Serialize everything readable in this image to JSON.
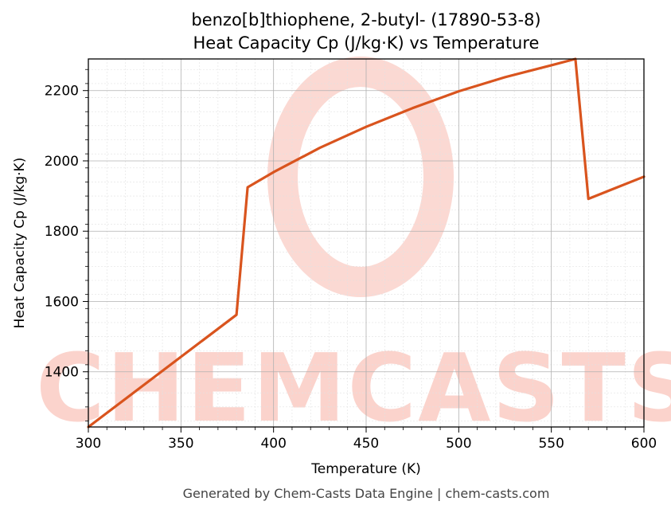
{
  "chart_data": {
    "type": "line",
    "title_line1": "benzo[b]thiophene, 2-butyl- (17890-53-8)",
    "title_line2": "Heat Capacity Cp (J/kg·K) vs Temperature",
    "xlabel": "Temperature (K)",
    "ylabel": "Heat Capacity Cp (J/kg·K)",
    "xlim": [
      300,
      600
    ],
    "ylim": [
      1243,
      2290
    ],
    "xticks": [
      300,
      350,
      400,
      450,
      500,
      550,
      600
    ],
    "yticks": [
      1400,
      1600,
      1800,
      2000,
      2200
    ],
    "grid": true,
    "series": [
      {
        "color": "#d9541e",
        "x": [
          300,
          380,
          386,
          400,
          425,
          450,
          475,
          500,
          525,
          550,
          563,
          570,
          600
        ],
        "y": [
          1243,
          1562,
          1925,
          1968,
          2037,
          2097,
          2150,
          2198,
          2238,
          2272,
          2290,
          1892,
          1955
        ]
      }
    ]
  },
  "watermark": "CHEMCASTS",
  "footer": "Generated by Chem-Casts Data Engine | chem-casts.com"
}
